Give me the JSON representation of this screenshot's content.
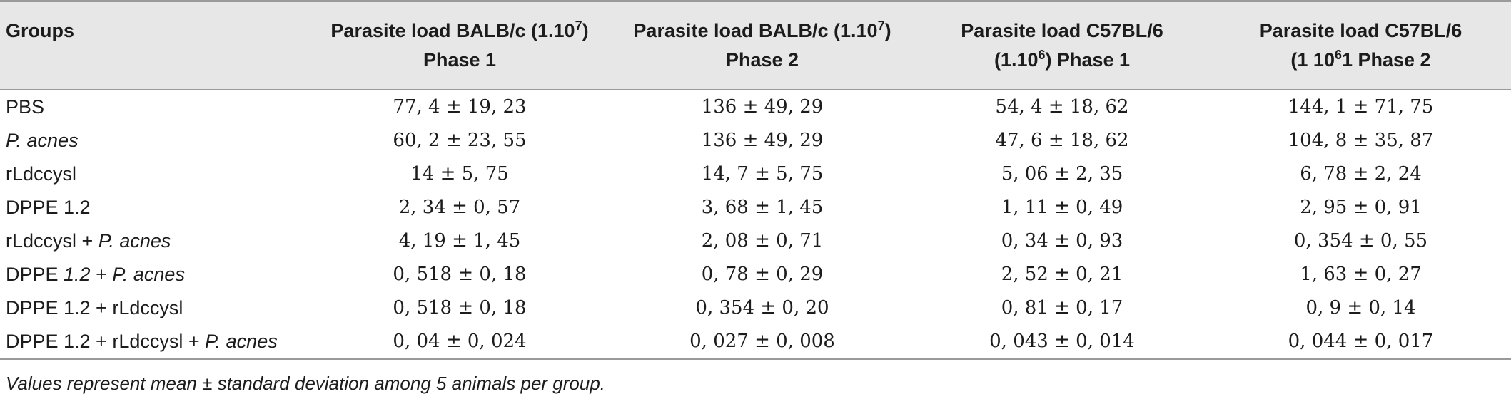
{
  "table": {
    "headers": [
      {
        "label": "Groups"
      },
      {
        "line1_pre": "Parasite load BALB/c (1.10",
        "line1_sup": "7",
        "line1_post": ")",
        "line2": "Phase 1"
      },
      {
        "line1_pre": "Parasite load BALB/c (1.10",
        "line1_sup": "7",
        "line1_post": ")",
        "line2": "Phase 2"
      },
      {
        "line1_pre": "Parasite load C57BL/6",
        "line1_sup": "",
        "line1_post": "",
        "line2_pre": "(1.10",
        "line2_sup": "6",
        "line2_post": ") Phase 1"
      },
      {
        "line1_pre": "Parasite load C57BL/6",
        "line1_sup": "",
        "line1_post": "",
        "line2_pre": "(1 10",
        "line2_sup": "6",
        "line2_post": "1 Phase 2"
      }
    ],
    "rows": [
      {
        "group_pre": "PBS",
        "group_it": "",
        "group_mid": "",
        "group_it2": "",
        "v1": "77, 4 ± 19, 23",
        "v2": "136 ± 49, 29",
        "v3": "54, 4 ± 18, 62",
        "v4": "144, 1 ± 71, 75"
      },
      {
        "group_pre": "",
        "group_it": "P. acnes",
        "group_mid": "",
        "group_it2": "",
        "v1": "60, 2 ± 23, 55",
        "v2": "136 ± 49, 29",
        "v3": "47, 6 ± 18, 62",
        "v4": "104, 8 ± 35, 87"
      },
      {
        "group_pre": "rLdccysl",
        "group_it": "",
        "group_mid": "",
        "group_it2": "",
        "v1": "14 ± 5, 75",
        "v2": "14, 7 ± 5, 75",
        "v3": "5, 06 ± 2, 35",
        "v4": "6, 78 ± 2, 24"
      },
      {
        "group_pre": "DPPE 1.2",
        "group_it": "",
        "group_mid": "",
        "group_it2": "",
        "v1": "2, 34 ± 0, 57",
        "v2": "3, 68 ± 1, 45",
        "v3": "1, 11 ± 0, 49",
        "v4": "2, 95 ± 0, 91"
      },
      {
        "group_pre": "rLdccysl + ",
        "group_it": "P. acnes",
        "group_mid": "",
        "group_it2": "",
        "v1": "4, 19 ± 1, 45",
        "v2": "2, 08 ± 0, 71",
        "v3": "0, 34 ± 0, 93",
        "v4": "0, 354 ± 0, 55"
      },
      {
        "group_pre": "DPPE ",
        "group_it": "1.2",
        "group_mid": " + ",
        "group_it2": "P. acnes",
        "v1": "0, 518 ± 0, 18",
        "v2": "0, 78 ± 0, 29",
        "v3": "2, 52 ± 0, 21",
        "v4": "1, 63 ± 0, 27"
      },
      {
        "group_pre": "DPPE 1.2 + rLdccysl",
        "group_it": "",
        "group_mid": "",
        "group_it2": "",
        "v1": "0, 518 ± 0, 18",
        "v2": "0, 354 ± 0, 20",
        "v3": "0, 81 ± 0, 17",
        "v4": "0, 9 ± 0, 14"
      },
      {
        "group_pre": "DPPE 1.2 + rLdccysl + ",
        "group_it": "P. acnes",
        "group_mid": "",
        "group_it2": "",
        "v1": "0, 04 ± 0, 024",
        "v2": "0, 027 ± 0, 008",
        "v3": "0, 043 ± 0, 014",
        "v4": "0, 044 ± 0, 017"
      }
    ]
  },
  "footnote": "Values represent mean ± standard deviation among 5 animals per group."
}
